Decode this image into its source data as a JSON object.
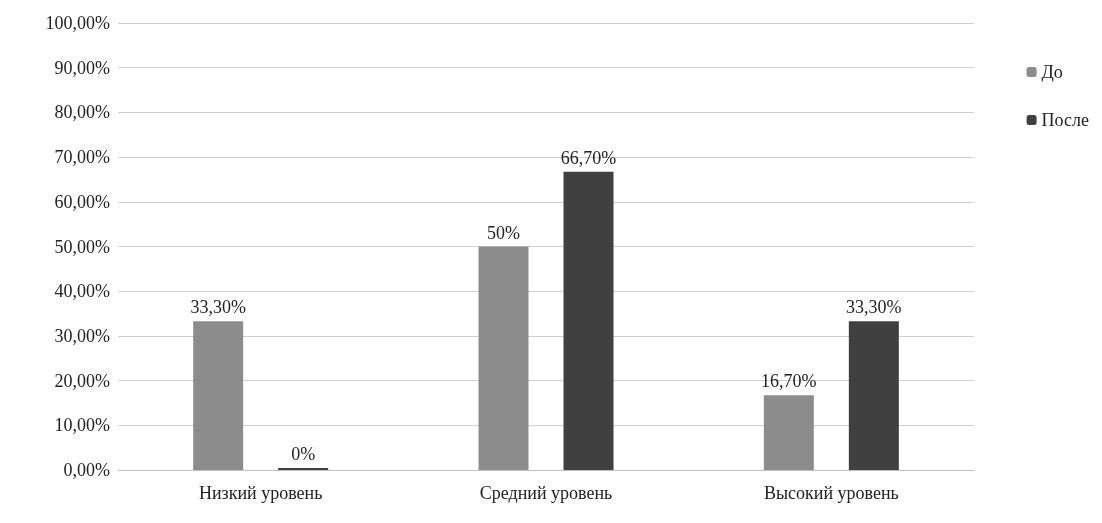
{
  "chart_data": {
    "type": "bar",
    "categories": [
      "Низкий уровень",
      "Средний уровень",
      "Высокий уровень"
    ],
    "series": [
      {
        "name": "До",
        "color": "#8c8c8c",
        "values": [
          33.3,
          50,
          16.7
        ],
        "value_labels": [
          "33,30%",
          "50%",
          "16,70%"
        ]
      },
      {
        "name": "После",
        "color": "#404040",
        "values": [
          0,
          66.7,
          33.3
        ],
        "value_labels": [
          "0%",
          "66,70%",
          "33,30%"
        ]
      }
    ],
    "ylim": [
      0,
      100
    ],
    "yticks": [
      {
        "value": 0,
        "label": "0,00%"
      },
      {
        "value": 10,
        "label": "10,00%"
      },
      {
        "value": 20,
        "label": "20,00%"
      },
      {
        "value": 30,
        "label": "30,00%"
      },
      {
        "value": 40,
        "label": "40,00%"
      },
      {
        "value": 50,
        "label": "50,00%"
      },
      {
        "value": 60,
        "label": "60,00%"
      },
      {
        "value": 70,
        "label": "70,00%"
      },
      {
        "value": 80,
        "label": "80,00%"
      },
      {
        "value": 90,
        "label": "90,00%"
      },
      {
        "value": 100,
        "label": "100,00%"
      }
    ],
    "grid": "y",
    "legend": "top right"
  }
}
